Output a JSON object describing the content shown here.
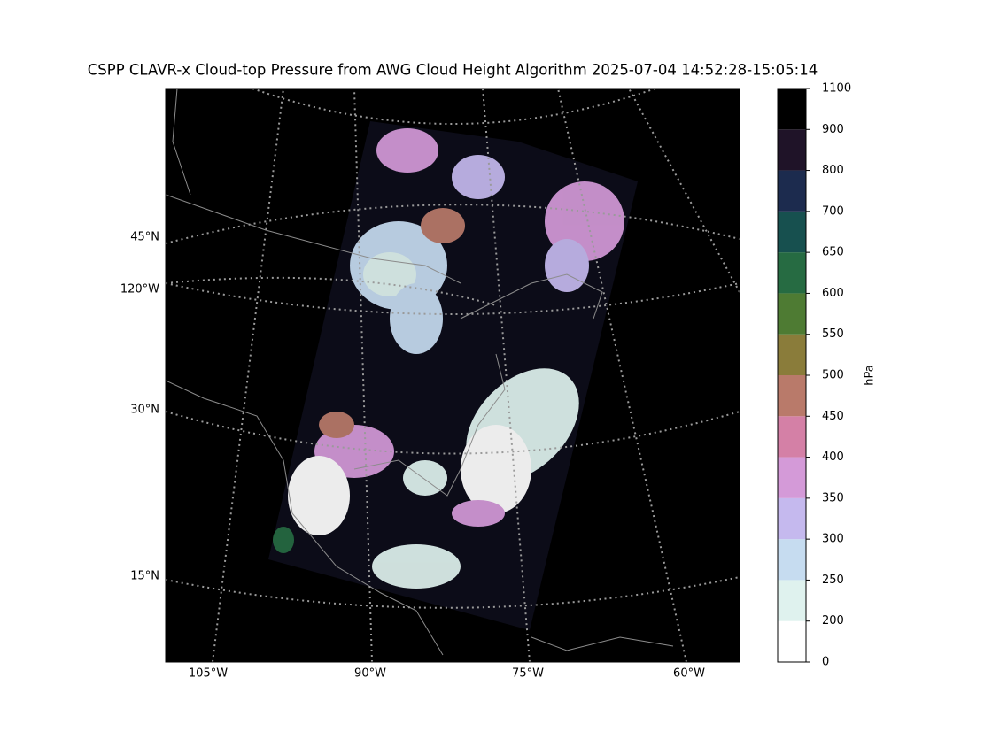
{
  "title": "CSPP CLAVR-x Cloud-top Pressure from AWG Cloud Height Algorithm 2025-07-04 14:52:28-15:05:14",
  "map": {
    "lat_labels": [
      "45°N",
      "120°W",
      "30°N",
      "15°N"
    ],
    "lon_labels": [
      "105°W",
      "90°W",
      "75°W",
      "60°W"
    ]
  },
  "colorbar": {
    "label": "hPa",
    "ticks": [
      0,
      200,
      250,
      300,
      350,
      400,
      450,
      500,
      550,
      600,
      650,
      700,
      800,
      900,
      1100
    ],
    "colors": [
      "#ffffff",
      "#dff2ee",
      "#c6dcf0",
      "#c5b9ee",
      "#d49ad8",
      "#d480a6",
      "#b97a6a",
      "#8a7c3a",
      "#4e7b33",
      "#266b42",
      "#17504f",
      "#1c2b4e",
      "#1f1328",
      "#000000"
    ]
  }
}
